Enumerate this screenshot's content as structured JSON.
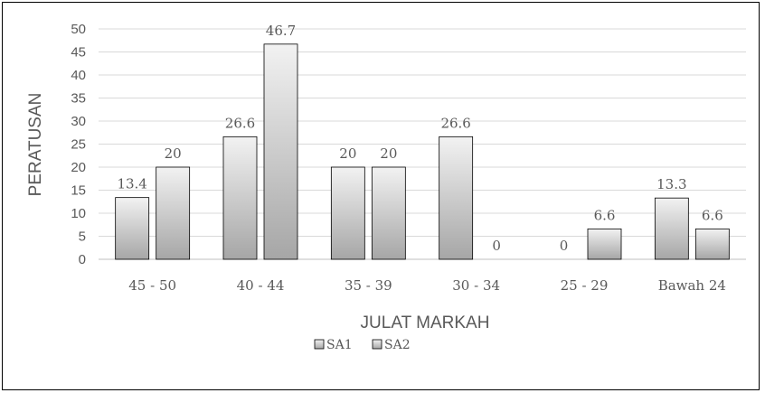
{
  "chart_data": {
    "type": "bar",
    "categories": [
      "45 - 50",
      "40 - 44",
      "35 - 39",
      "30 - 34",
      "25 - 29",
      "Bawah 24"
    ],
    "series": [
      {
        "name": "SA1",
        "values": [
          13.4,
          26.6,
          20,
          26.6,
          0,
          13.3
        ],
        "labels": [
          "13.4",
          "26.6",
          "20",
          "26.6",
          "0",
          "13.3"
        ]
      },
      {
        "name": "SA2",
        "values": [
          20,
          46.7,
          20,
          0,
          6.6,
          6.6
        ],
        "labels": [
          "20",
          "46.7",
          "20",
          "0",
          "6.6",
          "6.6"
        ]
      }
    ],
    "xlabel": "JULAT MARKAH",
    "ylabel": "PERATUSAN",
    "ylim": [
      0,
      50
    ],
    "yticks": [
      0,
      5,
      10,
      15,
      20,
      25,
      30,
      35,
      40,
      45,
      50
    ],
    "grid": true,
    "legend_position": "bottom"
  },
  "colors": {
    "bar_fill_light": "#f2f2f2",
    "bar_fill_dark": "#a6a6a6",
    "bar_stroke": "#000000",
    "gridline": "#d9d9d9",
    "text": "#595959"
  }
}
